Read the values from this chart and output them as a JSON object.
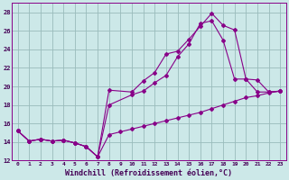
{
  "xlabel": "Windchill (Refroidissement éolien,°C)",
  "bg_color": "#cce8e8",
  "line_color": "#880088",
  "grid_color": "#99bbbb",
  "xlim": [
    -0.5,
    23.5
  ],
  "ylim": [
    12,
    29
  ],
  "yticks": [
    12,
    14,
    16,
    18,
    20,
    22,
    24,
    26,
    28
  ],
  "xticks": [
    0,
    1,
    2,
    3,
    4,
    5,
    6,
    7,
    8,
    9,
    10,
    11,
    12,
    13,
    14,
    15,
    16,
    17,
    18,
    19,
    20,
    21,
    22,
    23
  ],
  "line1_x": [
    0,
    1,
    2,
    3,
    4,
    5,
    6,
    7,
    8,
    10,
    11,
    12,
    13,
    14,
    15,
    16,
    17,
    18,
    19,
    20,
    21,
    22,
    23
  ],
  "line1_y": [
    15.2,
    14.1,
    14.3,
    14.1,
    14.2,
    13.9,
    13.5,
    12.4,
    19.6,
    19.4,
    20.6,
    21.5,
    23.5,
    23.8,
    25.1,
    26.5,
    27.9,
    26.6,
    26.1,
    20.8,
    20.7,
    19.4,
    19.5
  ],
  "line2_x": [
    0,
    1,
    2,
    3,
    4,
    5,
    6,
    7,
    8,
    10,
    11,
    12,
    13,
    14,
    15,
    16,
    17,
    18,
    19,
    20,
    21,
    22,
    23
  ],
  "line2_y": [
    15.2,
    14.1,
    14.3,
    14.1,
    14.2,
    13.9,
    13.5,
    12.4,
    18.0,
    19.1,
    19.5,
    20.4,
    21.2,
    23.2,
    24.6,
    26.8,
    27.1,
    25.0,
    20.8,
    20.8,
    19.4,
    19.4,
    19.5
  ],
  "line3_x": [
    0,
    1,
    2,
    3,
    4,
    5,
    6,
    7,
    8,
    9,
    10,
    11,
    12,
    13,
    14,
    15,
    16,
    17,
    18,
    19,
    20,
    21,
    22,
    23
  ],
  "line3_y": [
    15.2,
    14.1,
    14.3,
    14.1,
    14.2,
    13.9,
    13.5,
    12.4,
    14.8,
    15.1,
    15.4,
    15.7,
    16.0,
    16.3,
    16.6,
    16.9,
    17.2,
    17.6,
    18.0,
    18.4,
    18.8,
    19.0,
    19.3,
    19.5
  ]
}
